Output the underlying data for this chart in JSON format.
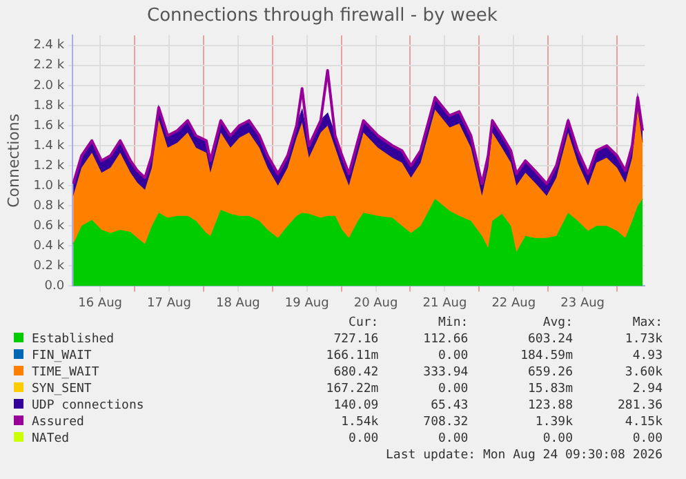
{
  "chart_data": {
    "type": "area",
    "title": "Connections through firewall - by week",
    "ylabel": "Connections",
    "stacked": true,
    "grid": true,
    "legend": "bottom",
    "xlim": [
      "2026-08-16T02:24",
      "2026-08-24T09:36"
    ],
    "ylim": [
      0,
      2500
    ],
    "xticks": [
      {
        "value": "2026-08-17T00:00",
        "label": null
      },
      {
        "value": "2026-08-18T00:00",
        "label": null
      },
      {
        "value": "2026-08-19T00:00",
        "label": null
      },
      {
        "value": "2026-08-20T00:00",
        "label": null
      },
      {
        "value": "2026-08-21T00:00",
        "label": null
      },
      {
        "value": "2026-08-22T00:00",
        "label": null
      },
      {
        "value": "2026-08-23T00:00",
        "label": null
      },
      {
        "value": "2026-08-24T00:00",
        "label": null
      },
      {
        "value": "2026-08-16T12:00",
        "label": "16 Aug"
      },
      {
        "value": "2026-08-17T12:00",
        "label": "17 Aug"
      },
      {
        "value": "2026-08-18T12:00",
        "label": "18 Aug"
      },
      {
        "value": "2026-08-19T12:00",
        "label": "19 Aug"
      },
      {
        "value": "2026-08-20T12:00",
        "label": "20 Aug"
      },
      {
        "value": "2026-08-21T12:00",
        "label": "21 Aug"
      },
      {
        "value": "2026-08-22T12:00",
        "label": "22 Aug"
      },
      {
        "value": "2026-08-23T12:00",
        "label": "23 Aug"
      }
    ],
    "yticks": [
      {
        "value": 0,
        "label": "0.0"
      },
      {
        "value": 200,
        "label": "0.2 k"
      },
      {
        "value": 400,
        "label": "0.4 k"
      },
      {
        "value": 600,
        "label": "0.6 k"
      },
      {
        "value": 800,
        "label": "0.8 k"
      },
      {
        "value": 1000,
        "label": "1.0 k"
      },
      {
        "value": 1200,
        "label": "1.2 k"
      },
      {
        "value": 1400,
        "label": "1.4 k"
      },
      {
        "value": 1600,
        "label": "1.6 k"
      },
      {
        "value": 1800,
        "label": "1.8 k"
      },
      {
        "value": 2000,
        "label": "2.0 k"
      },
      {
        "value": 2200,
        "label": "2.2 k"
      },
      {
        "value": 2400,
        "label": "2.4 k"
      }
    ],
    "x": [
      "2026-08-16T02:38",
      "2026-08-16T05:31",
      "2026-08-16T09:07",
      "2026-08-16T12:29",
      "2026-08-16T15:36",
      "2026-08-16T18:58",
      "2026-08-16T22:34",
      "2026-08-17T00:58",
      "2026-08-17T03:36",
      "2026-08-17T06:00",
      "2026-08-17T08:24",
      "2026-08-17T11:31",
      "2026-08-17T14:53",
      "2026-08-17T18:29",
      "2026-08-17T21:22",
      "2026-08-18T00:58",
      "2026-08-18T02:24",
      "2026-08-18T06:00",
      "2026-08-18T09:22",
      "2026-08-18T12:29",
      "2026-08-18T15:50",
      "2026-08-18T19:26",
      "2026-08-18T22:19",
      "2026-08-19T01:55",
      "2026-08-19T05:17",
      "2026-08-19T08:24",
      "2026-08-19T10:19",
      "2026-08-19T12:43",
      "2026-08-19T16:48",
      "2026-08-19T19:12",
      "2026-08-19T21:50",
      "2026-08-20T00:14",
      "2026-08-20T02:38",
      "2026-08-20T05:46",
      "2026-08-20T07:41",
      "2026-08-20T12:43",
      "2026-08-20T17:46",
      "2026-08-20T21:07",
      "2026-08-21T00:14",
      "2026-08-21T03:36",
      "2026-08-21T08:38",
      "2026-08-21T13:41",
      "2026-08-21T17:02",
      "2026-08-21T21:07",
      "2026-08-22T00:58",
      "2026-08-22T03:07",
      "2026-08-22T04:34",
      "2026-08-22T07:55",
      "2026-08-22T11:02",
      "2026-08-22T12:58",
      "2026-08-22T16:05",
      "2026-08-22T19:26",
      "2026-08-22T23:31",
      "2026-08-23T02:53",
      "2026-08-23T06:58",
      "2026-08-23T10:19",
      "2026-08-23T13:55",
      "2026-08-23T16:48",
      "2026-08-23T20:24",
      "2026-08-24T00:00",
      "2026-08-24T02:53",
      "2026-08-24T05:17",
      "2026-08-24T07:12",
      "2026-08-24T08:53"
    ],
    "series": [
      {
        "name": "Established",
        "color": "#00cc00",
        "values": [
          420,
          600,
          660,
          560,
          530,
          560,
          540,
          480,
          420,
          600,
          730,
          680,
          700,
          700,
          650,
          530,
          500,
          760,
          720,
          700,
          700,
          650,
          560,
          480,
          600,
          700,
          730,
          720,
          680,
          700,
          700,
          560,
          480,
          650,
          730,
          700,
          680,
          600,
          530,
          600,
          870,
          750,
          700,
          650,
          500,
          380,
          650,
          720,
          600,
          340,
          500,
          480,
          480,
          500,
          730,
          650,
          550,
          600,
          600,
          550,
          480,
          650,
          800,
          870
        ]
      },
      {
        "name": "FIN_WAIT",
        "color": "#0066b3",
        "values": [
          null,
          null,
          null,
          null,
          null,
          null,
          null,
          null,
          null,
          null,
          null,
          null,
          null,
          null,
          null,
          null,
          null,
          null,
          null,
          null,
          null,
          null,
          null,
          null,
          null,
          null,
          null,
          null,
          null,
          null,
          null,
          null,
          null,
          null,
          null,
          null,
          null,
          null,
          null,
          null,
          null,
          null,
          null,
          null,
          null,
          null,
          null,
          null,
          null,
          null,
          null,
          null,
          null,
          null,
          null,
          null,
          null,
          null,
          null,
          null,
          null,
          null,
          null,
          null
        ]
      },
      {
        "name": "TIME_WAIT",
        "color": "#ff8000",
        "values": [
          480,
          580,
          670,
          570,
          650,
          770,
          590,
          550,
          540,
          580,
          930,
          700,
          730,
          830,
          730,
          800,
          630,
          770,
          660,
          780,
          830,
          730,
          620,
          520,
          580,
          780,
          900,
          560,
          850,
          900,
          680,
          620,
          520,
          680,
          800,
          680,
          600,
          630,
          550,
          630,
          890,
          830,
          920,
          730,
          400,
          800,
          880,
          660,
          630,
          660,
          630,
          550,
          420,
          580,
          800,
          580,
          450,
          630,
          680,
          630,
          550,
          630,
          960,
          560
        ]
      },
      {
        "name": "SYN_SENT",
        "color": "#ffcc00",
        "values": [
          null,
          null,
          null,
          null,
          null,
          null,
          null,
          null,
          null,
          null,
          null,
          null,
          null,
          null,
          null,
          null,
          null,
          null,
          null,
          null,
          null,
          null,
          null,
          null,
          null,
          null,
          null,
          null,
          null,
          null,
          null,
          null,
          null,
          null,
          null,
          null,
          null,
          null,
          null,
          null,
          null,
          null,
          null,
          null,
          null,
          null,
          null,
          null,
          null,
          null,
          null,
          null,
          null,
          null,
          null,
          null,
          null,
          null,
          null,
          null,
          null,
          null,
          null,
          null
        ]
      },
      {
        "name": "UDP connections",
        "color": "#330099",
        "values": [
          120,
          120,
          120,
          120,
          120,
          120,
          120,
          120,
          120,
          120,
          120,
          120,
          120,
          120,
          120,
          120,
          120,
          120,
          120,
          120,
          120,
          120,
          120,
          120,
          120,
          120,
          120,
          120,
          120,
          120,
          120,
          120,
          120,
          120,
          120,
          120,
          120,
          120,
          120,
          120,
          120,
          120,
          120,
          120,
          120,
          120,
          120,
          120,
          120,
          120,
          120,
          120,
          120,
          120,
          120,
          120,
          120,
          120,
          120,
          120,
          120,
          120,
          120,
          120
        ]
      },
      {
        "name": "Assured",
        "color": "#990099",
        "type": "line",
        "values": [
          1020,
          1300,
          1450,
          1250,
          1300,
          1450,
          1250,
          1150,
          1080,
          1300,
          1780,
          1500,
          1550,
          1650,
          1500,
          1450,
          1250,
          1650,
          1500,
          1600,
          1650,
          1500,
          1300,
          1120,
          1300,
          1600,
          1970,
          1400,
          1650,
          2150,
          1500,
          1300,
          1120,
          1450,
          1650,
          1500,
          1400,
          1350,
          1200,
          1350,
          1880,
          1700,
          1740,
          1500,
          1020,
          1300,
          1650,
          1500,
          1350,
          1120,
          1250,
          1150,
          1020,
          1200,
          1650,
          1350,
          1120,
          1350,
          1400,
          1300,
          1150,
          1400,
          1880,
          1550
        ]
      },
      {
        "name": "NATed",
        "color": "#ccff00",
        "values": [
          null,
          null,
          null,
          null,
          null,
          null,
          null,
          null,
          null,
          null,
          null,
          null,
          null,
          null,
          null,
          null,
          null,
          null,
          null,
          null,
          null,
          null,
          null,
          null,
          null,
          null,
          null,
          null,
          null,
          null,
          null,
          null,
          null,
          null,
          null,
          null,
          null,
          null,
          null,
          null,
          null,
          null,
          null,
          null,
          null,
          null,
          null,
          null,
          null,
          null,
          null,
          null,
          null,
          null,
          null,
          null,
          null,
          null,
          null,
          null,
          null,
          null,
          null,
          null
        ]
      }
    ],
    "annotations": [
      "Cur:",
      "Min:",
      "Avg:",
      "Max:",
      "727.16",
      "112.66",
      "603.24",
      "1.73k",
      "166.11m",
      "0.00",
      "184.59m",
      "4.93",
      "680.42",
      "333.94",
      "659.26",
      "3.60k",
      "167.22m",
      "0.00",
      "15.83m",
      "2.94",
      "140.09",
      "65.43",
      "123.88",
      "281.36",
      "1.54k",
      "708.32",
      "1.39k",
      "4.15k",
      "0.00",
      "0.00",
      "0.00",
      "0.00",
      "Last update: Mon Aug 24 09:30:08 2026"
    ]
  }
}
